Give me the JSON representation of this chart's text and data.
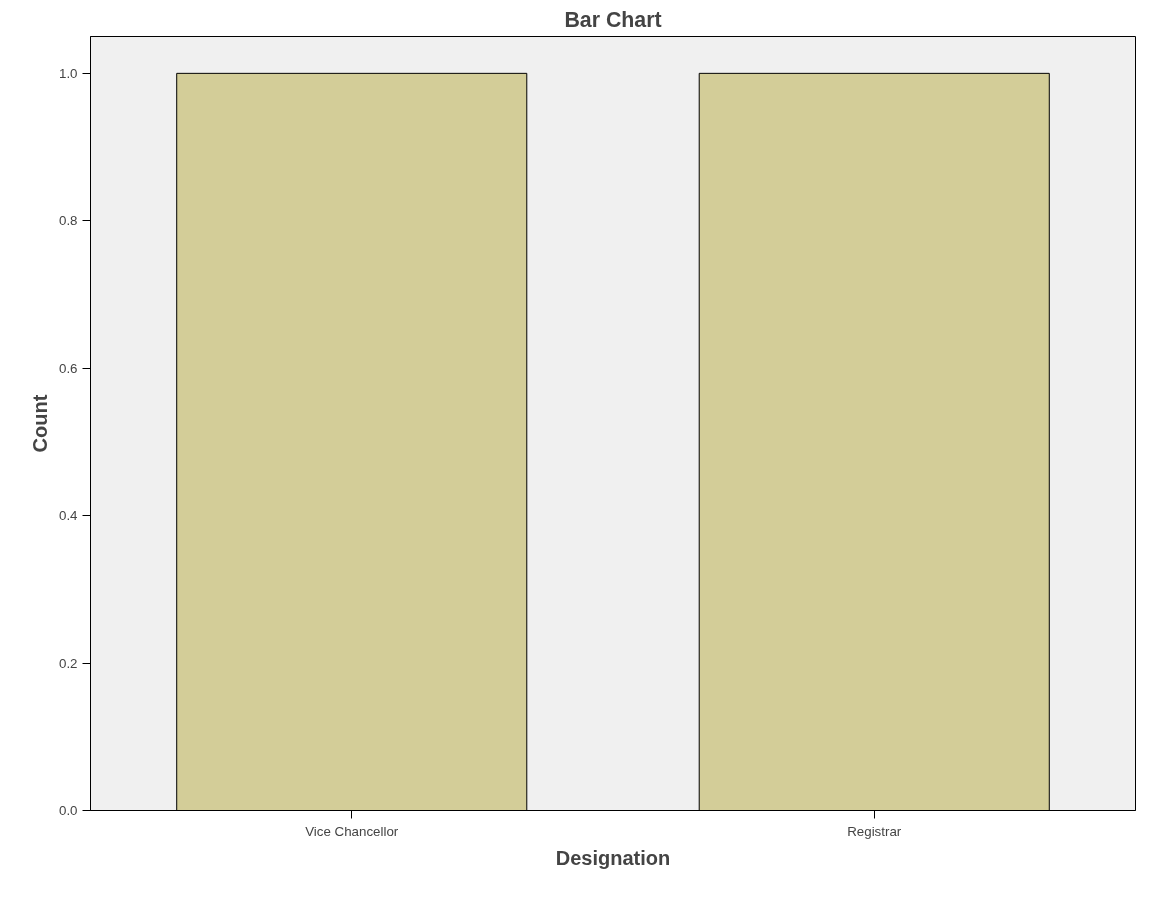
{
  "chart_data": {
    "type": "bar",
    "title": "Bar Chart",
    "xlabel": "Designation",
    "ylabel": "Count",
    "categories": [
      "Vice Chancellor",
      "Registrar"
    ],
    "values": [
      1.0,
      1.0
    ],
    "color": "#d3cd98",
    "ylim": [
      0,
      1.05
    ],
    "yticks": [
      {
        "value": 0,
        "label": "0.0"
      },
      0.2,
      0.4,
      0.6,
      0.8,
      {
        "value": 1,
        "label": "1.0"
      }
    ],
    "grid": false
  }
}
